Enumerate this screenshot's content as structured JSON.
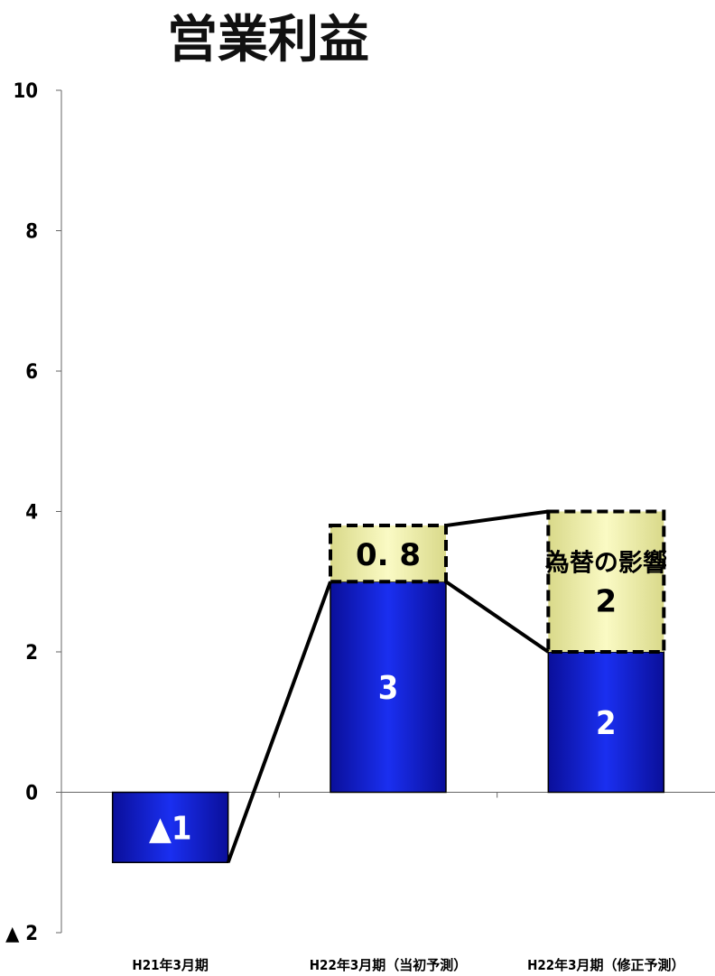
{
  "chart_data": {
    "type": "bar",
    "title": "営業利益",
    "categories": [
      "H21年3月期",
      "H22年3月期（当初予測）",
      "H22年3月期（修正予測）"
    ],
    "series": [
      {
        "values": [
          -1,
          3,
          2
        ],
        "color": "#0a14c8"
      },
      {
        "values": [
          0,
          0.8,
          2
        ],
        "color": "#f0f0a0"
      }
    ],
    "bar_labels": [
      "▲1",
      "3",
      "2"
    ],
    "fx_labels": [
      "",
      "0. 8",
      "2"
    ],
    "fx_caption": "為替の影響",
    "ylim": [
      -2,
      10
    ],
    "yticks": [
      10,
      8,
      6,
      4,
      2,
      0,
      -2
    ],
    "ytick_labels": [
      "10",
      "8",
      "6",
      "4",
      "2",
      "0",
      "▲ 2"
    ],
    "grid": false,
    "legend": "none"
  }
}
